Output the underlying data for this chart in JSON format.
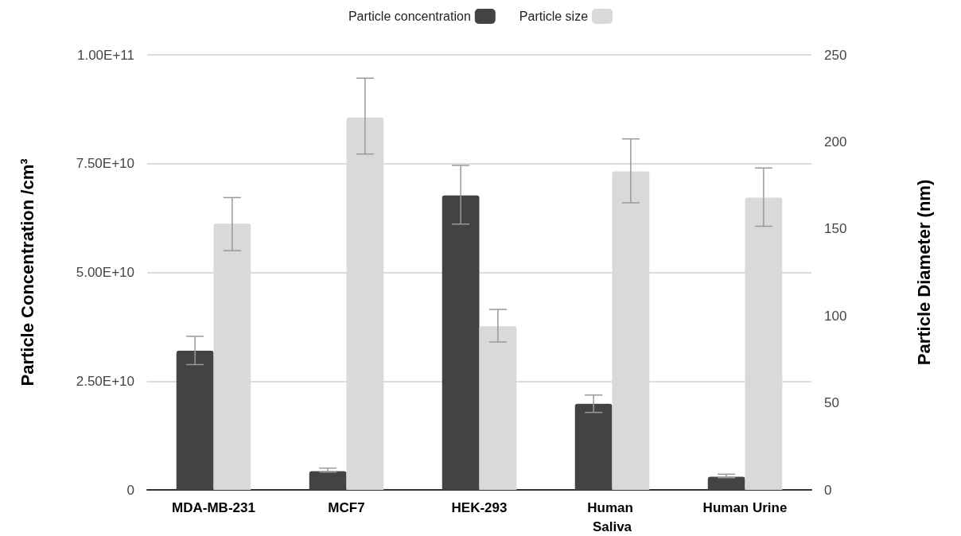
{
  "chart_data": {
    "type": "bar",
    "ylabel": "Particle Concentration /cm³",
    "y2label": "Particle Diameter (nm)",
    "categories": [
      "MDA-MB-231",
      "MCF7",
      "HEK-293",
      "Human Saliva",
      "Human Urine"
    ],
    "series": [
      {
        "name": "Particle concentration",
        "color": "#434343",
        "values": [
          32000000000.0,
          4300000000.0,
          67700000000.0,
          19800000000.0,
          3000000000.0
        ],
        "errors": [
          [
            28800000000.0,
            35300000000.0
          ],
          [
            4100000000.0,
            5000000000.0
          ],
          [
            61100000000.0,
            74600000000.0
          ],
          [
            17800000000.0,
            21800000000.0
          ],
          [
            2800000000.0,
            3600000000.0
          ]
        ]
      },
      {
        "name": "Particle size",
        "color": "#d9d9d9",
        "axis": "y2",
        "values": [
          153,
          214,
          94,
          183,
          168
        ],
        "errors": [
          [
            137.5,
            168
          ],
          [
            193,
            236.6
          ],
          [
            85,
            103.7
          ],
          [
            165,
            201.7
          ],
          [
            151.5,
            185
          ]
        ]
      }
    ],
    "ylim": [
      0,
      100000000000.0
    ],
    "yticks": [
      {
        "value": 0,
        "label": "0"
      },
      {
        "value": 25000000000.0,
        "label": "2.50E+10"
      },
      {
        "value": 50000000000.0,
        "label": "5.00E+10"
      },
      {
        "value": 75000000000.0,
        "label": "7.50E+10"
      },
      {
        "value": 100000000000.0,
        "label": "1.00E+11"
      }
    ],
    "y2lim": [
      0,
      250
    ],
    "y2ticks": [
      0,
      50,
      100,
      150,
      200,
      250
    ],
    "grid": "y",
    "legend": "top"
  }
}
